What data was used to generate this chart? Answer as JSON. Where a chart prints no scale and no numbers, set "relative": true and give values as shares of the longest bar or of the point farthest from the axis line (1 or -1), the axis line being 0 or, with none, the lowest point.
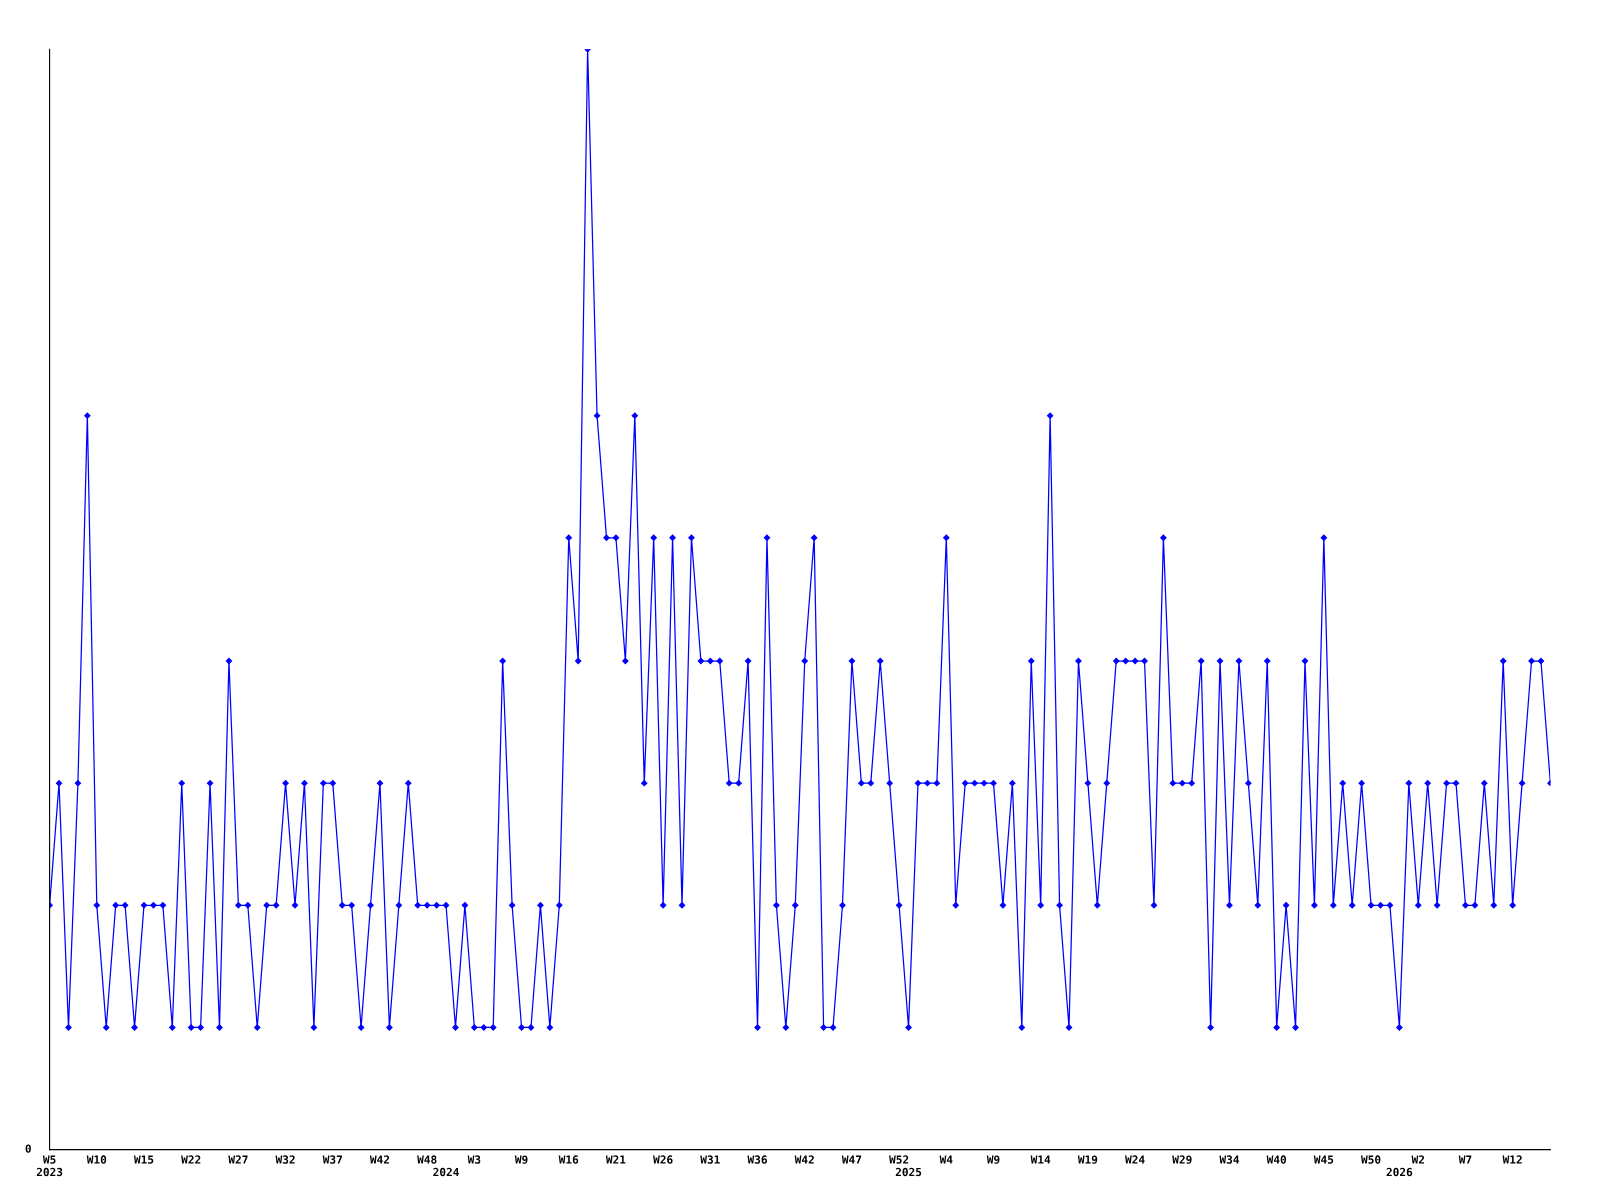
{
  "chart_data": {
    "type": "line",
    "relative": true,
    "categories": [
      "W5\n2023",
      null,
      null,
      null,
      null,
      "W10",
      null,
      null,
      null,
      null,
      "W15",
      null,
      null,
      null,
      null,
      "W22",
      null,
      null,
      null,
      null,
      "W27",
      null,
      null,
      null,
      null,
      "W32",
      null,
      null,
      null,
      null,
      "W37",
      null,
      null,
      null,
      null,
      "W42",
      null,
      null,
      null,
      null,
      "W48",
      null,
      "\n2024",
      null,
      null,
      "W3",
      null,
      null,
      null,
      null,
      "W9",
      null,
      null,
      null,
      null,
      "W16",
      null,
      null,
      null,
      null,
      "W21",
      null,
      null,
      null,
      null,
      "W26",
      null,
      null,
      null,
      null,
      "W31",
      null,
      null,
      null,
      null,
      "W36",
      null,
      null,
      null,
      null,
      "W42",
      null,
      null,
      null,
      null,
      "W47",
      null,
      null,
      null,
      null,
      "W52",
      "\n2025",
      null,
      null,
      null,
      "W4",
      null,
      null,
      null,
      null,
      "W9",
      null,
      null,
      null,
      null,
      "W14",
      null,
      null,
      null,
      null,
      "W19",
      null,
      null,
      null,
      null,
      "W24",
      null,
      null,
      null,
      null,
      "W29",
      null,
      null,
      null,
      null,
      "W34",
      null,
      null,
      null,
      null,
      "W40",
      null,
      null,
      null,
      null,
      "W45",
      null,
      null,
      null,
      null,
      "W50",
      null,
      null,
      "\n2026",
      null,
      "W2",
      null,
      null,
      null,
      null,
      "W7",
      null,
      null,
      null,
      null,
      "W12",
      null,
      null,
      null,
      null
    ],
    "series": [
      {
        "color": "#0000ff",
        "values": [
          0.222,
          0.333,
          0.111,
          0.333,
          0.667,
          0.222,
          0.111,
          0.222,
          0.222,
          0.111,
          0.222,
          0.222,
          0.222,
          0.111,
          0.333,
          0.111,
          0.111,
          0.333,
          0.111,
          0.444,
          0.222,
          0.222,
          0.111,
          0.222,
          0.222,
          0.333,
          0.222,
          0.333,
          0.111,
          0.333,
          0.333,
          0.222,
          0.222,
          0.111,
          0.222,
          0.333,
          0.111,
          0.222,
          0.333,
          0.222,
          0.222,
          0.222,
          0.222,
          0.111,
          0.222,
          0.111,
          0.111,
          0.111,
          0.444,
          0.222,
          0.111,
          0.111,
          0.222,
          0.111,
          0.222,
          0.556,
          0.444,
          1,
          0.667,
          0.556,
          0.556,
          0.444,
          0.667,
          0.333,
          0.556,
          0.222,
          0.556,
          0.222,
          0.556,
          0.444,
          0.444,
          0.444,
          0.333,
          0.333,
          0.444,
          0.111,
          0.556,
          0.222,
          0.111,
          0.222,
          0.444,
          0.556,
          0.111,
          0.111,
          0.222,
          0.444,
          0.333,
          0.333,
          0.444,
          0.333,
          0.222,
          0.111,
          0.333,
          0.333,
          0.333,
          0.556,
          0.222,
          0.333,
          0.333,
          0.333,
          0.333,
          0.222,
          0.333,
          0.111,
          0.444,
          0.222,
          0.667,
          0.222,
          0.111,
          0.444,
          0.333,
          0.222,
          0.333,
          0.444,
          0.444,
          0.444,
          0.444,
          0.222,
          0.556,
          0.333,
          0.333,
          0.333,
          0.444,
          0.111,
          0.444,
          0.222,
          0.444,
          0.333,
          0.222,
          0.444,
          0.111,
          0.222,
          0.111,
          0.444,
          0.222,
          0.556,
          0.222,
          0.333,
          0.222,
          0.333,
          0.222,
          0.222,
          0.222,
          0.111,
          0.333,
          0.222,
          0.333,
          0.222,
          0.333,
          0.333,
          0.222,
          0.222,
          0.333,
          0.222,
          0.444,
          0.222,
          0.333,
          0.444,
          0.444,
          0.333
        ]
      }
    ],
    "marker": "diamond",
    "line_style": "solid",
    "grid": false,
    "legend": false,
    "annotations": [
      "0"
    ]
  }
}
